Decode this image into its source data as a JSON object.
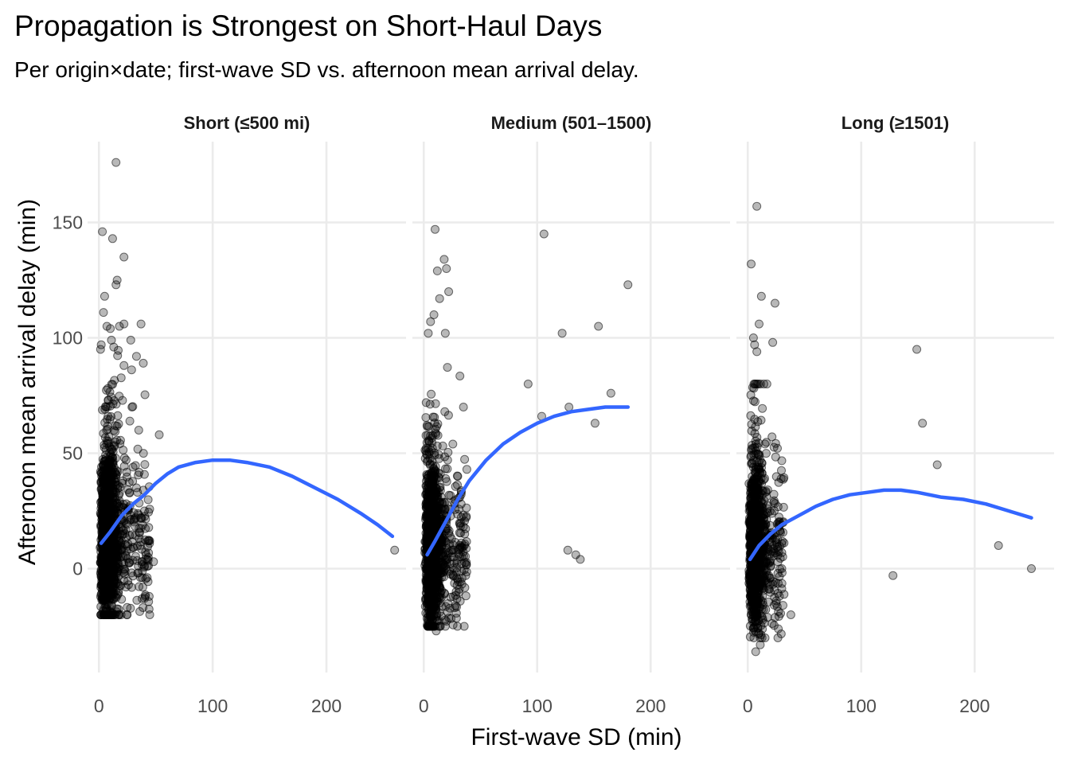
{
  "title": "Propagation is Strongest on Short-Haul Days",
  "subtitle": "Per origin×date; first-wave SD vs. afternoon mean arrival delay.",
  "chart_data": {
    "type": "scatter",
    "title": "Propagation is Strongest on Short-Haul Days",
    "subtitle": "Per origin×date; first-wave SD vs. afternoon mean arrival delay.",
    "xlabel": "First-wave SD (min)",
    "ylabel": "Afternoon mean arrival delay (min)",
    "xlim": [
      -10,
      270
    ],
    "ylim": [
      -45,
      185
    ],
    "x_ticks": [
      0,
      100,
      200
    ],
    "y_ticks": [
      0,
      50,
      100,
      150
    ],
    "grid": true,
    "shared_y_axis": true,
    "smooth": "loess",
    "colors": {
      "points": "#000000",
      "smooth": "#3366FF",
      "grid": "#EBEBEB"
    },
    "panels": [
      {
        "label": "Short (≤500 mi)",
        "smooth": [
          [
            2,
            11
          ],
          [
            10,
            16
          ],
          [
            20,
            23
          ],
          [
            30,
            28
          ],
          [
            40,
            32
          ],
          [
            50,
            37
          ],
          [
            60,
            41
          ],
          [
            70,
            44
          ],
          [
            85,
            46
          ],
          [
            100,
            47
          ],
          [
            115,
            47
          ],
          [
            130,
            46
          ],
          [
            150,
            44
          ],
          [
            170,
            40
          ],
          [
            190,
            35
          ],
          [
            210,
            30
          ],
          [
            230,
            24
          ],
          [
            245,
            19
          ],
          [
            258,
            14
          ]
        ],
        "outliers": [
          [
            15,
            176
          ],
          [
            3,
            146
          ],
          [
            12,
            143
          ],
          [
            22,
            135
          ],
          [
            16,
            125
          ],
          [
            15,
            123
          ],
          [
            5,
            118
          ],
          [
            4,
            111
          ],
          [
            37,
            106
          ],
          [
            22,
            106
          ],
          [
            18,
            105
          ],
          [
            7,
            105
          ],
          [
            10,
            104
          ],
          [
            11,
            99
          ],
          [
            28,
            99
          ],
          [
            2,
            97
          ],
          [
            13,
            96
          ],
          [
            33,
            92
          ],
          [
            39,
            89
          ],
          [
            22,
            88
          ],
          [
            53,
            58
          ],
          [
            48,
            3
          ],
          [
            38,
            -13
          ],
          [
            26,
            -7
          ],
          [
            260,
            8
          ],
          [
            40,
            25
          ],
          [
            44,
            12
          ],
          [
            33,
            35
          ],
          [
            30,
            44
          ],
          [
            35,
            60
          ],
          [
            29,
            70
          ]
        ],
        "cluster": {
          "x_range": [
            1,
            45
          ],
          "x_mode": 8,
          "y_range": [
            -20,
            95
          ],
          "y_center": 10,
          "n": 1400
        }
      },
      {
        "label": "Medium (501–1500)",
        "smooth": [
          [
            3,
            6
          ],
          [
            10,
            12
          ],
          [
            20,
            21
          ],
          [
            30,
            30
          ],
          [
            40,
            38
          ],
          [
            55,
            47
          ],
          [
            70,
            54
          ],
          [
            85,
            59
          ],
          [
            100,
            63
          ],
          [
            115,
            66
          ],
          [
            130,
            68
          ],
          [
            145,
            69
          ],
          [
            160,
            70
          ],
          [
            170,
            70
          ],
          [
            180,
            70
          ]
        ],
        "outliers": [
          [
            10,
            147
          ],
          [
            18,
            134
          ],
          [
            20,
            130
          ],
          [
            12,
            129
          ],
          [
            22,
            120
          ],
          [
            14,
            117
          ],
          [
            9,
            110
          ],
          [
            6,
            107
          ],
          [
            4,
            102
          ],
          [
            19,
            102
          ],
          [
            106,
            145
          ],
          [
            180,
            123
          ],
          [
            122,
            102
          ],
          [
            154,
            105
          ],
          [
            165,
            76
          ],
          [
            92,
            80
          ],
          [
            104,
            66
          ],
          [
            128,
            70
          ],
          [
            151,
            63
          ],
          [
            127,
            8
          ],
          [
            134,
            6
          ],
          [
            138,
            4
          ],
          [
            35,
            70
          ],
          [
            30,
            40
          ],
          [
            33,
            28
          ],
          [
            37,
            -3
          ],
          [
            28,
            -16
          ],
          [
            11,
            -27
          ],
          [
            7,
            -20
          ]
        ],
        "cluster": {
          "x_range": [
            1,
            38
          ],
          "x_mode": 7,
          "y_range": [
            -25,
            92
          ],
          "y_center": 5,
          "n": 1300
        }
      },
      {
        "label": "Long (≥1501)",
        "smooth": [
          [
            2,
            4
          ],
          [
            10,
            10
          ],
          [
            20,
            15
          ],
          [
            30,
            19
          ],
          [
            45,
            23
          ],
          [
            60,
            27
          ],
          [
            75,
            30
          ],
          [
            90,
            32
          ],
          [
            105,
            33
          ],
          [
            120,
            34
          ],
          [
            135,
            34
          ],
          [
            150,
            33
          ],
          [
            170,
            31
          ],
          [
            190,
            30
          ],
          [
            210,
            28
          ],
          [
            230,
            25
          ],
          [
            250,
            22
          ]
        ],
        "outliers": [
          [
            8,
            157
          ],
          [
            3,
            132
          ],
          [
            12,
            118
          ],
          [
            24,
            115
          ],
          [
            10,
            106
          ],
          [
            22,
            98
          ],
          [
            6,
            97
          ],
          [
            8,
            94
          ],
          [
            5,
            100
          ],
          [
            149,
            95
          ],
          [
            154,
            63
          ],
          [
            167,
            45
          ],
          [
            221,
            10
          ],
          [
            250,
            0
          ],
          [
            128,
            -3
          ],
          [
            38,
            -20
          ],
          [
            30,
            0
          ],
          [
            27,
            20
          ],
          [
            7,
            -36
          ],
          [
            11,
            -33
          ]
        ],
        "cluster": {
          "x_range": [
            1,
            32
          ],
          "x_mode": 6,
          "y_range": [
            -30,
            80
          ],
          "y_center": 6,
          "n": 1200
        }
      }
    ]
  }
}
